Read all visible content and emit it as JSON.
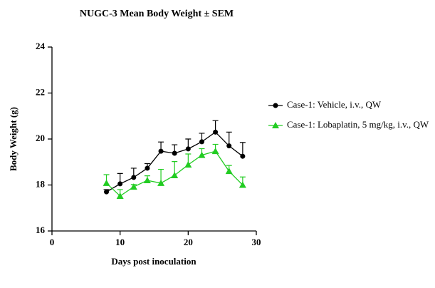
{
  "chart_data": {
    "type": "line",
    "title": "NUGC-3 Mean Body Weight ± SEM",
    "x_label": "Days post inoculation",
    "y_label": "Body Weight (g)",
    "x": [
      8,
      10,
      12,
      14,
      16,
      18,
      20,
      22,
      24,
      26,
      28
    ],
    "series": [
      {
        "name": "Case-1: Vehicle, i.v., QW",
        "color": "#000000",
        "marker": "circle",
        "values": [
          17.7,
          18.05,
          18.33,
          18.73,
          19.47,
          19.38,
          19.57,
          19.88,
          20.3,
          19.7,
          19.25
        ],
        "errors": [
          0.1,
          0.45,
          0.4,
          0.2,
          0.4,
          0.37,
          0.43,
          0.37,
          0.5,
          0.6,
          0.6
        ]
      },
      {
        "name": "Case-1: Lobaplatin, 5 mg/kg, i.v., QW",
        "color": "#22cc22",
        "marker": "triangle",
        "values": [
          18.08,
          17.52,
          17.92,
          18.2,
          18.08,
          18.42,
          18.88,
          19.3,
          19.47,
          18.6,
          18.0
        ],
        "errors": [
          0.37,
          0.28,
          0.1,
          0.2,
          0.6,
          0.6,
          0.47,
          0.28,
          0.3,
          0.25,
          0.35
        ]
      }
    ],
    "xlim": [
      0,
      30
    ],
    "xticks": [
      0,
      10,
      20,
      30
    ],
    "ylim": [
      16,
      24
    ],
    "yticks": [
      16,
      18,
      20,
      22,
      24
    ],
    "legend": "right"
  }
}
